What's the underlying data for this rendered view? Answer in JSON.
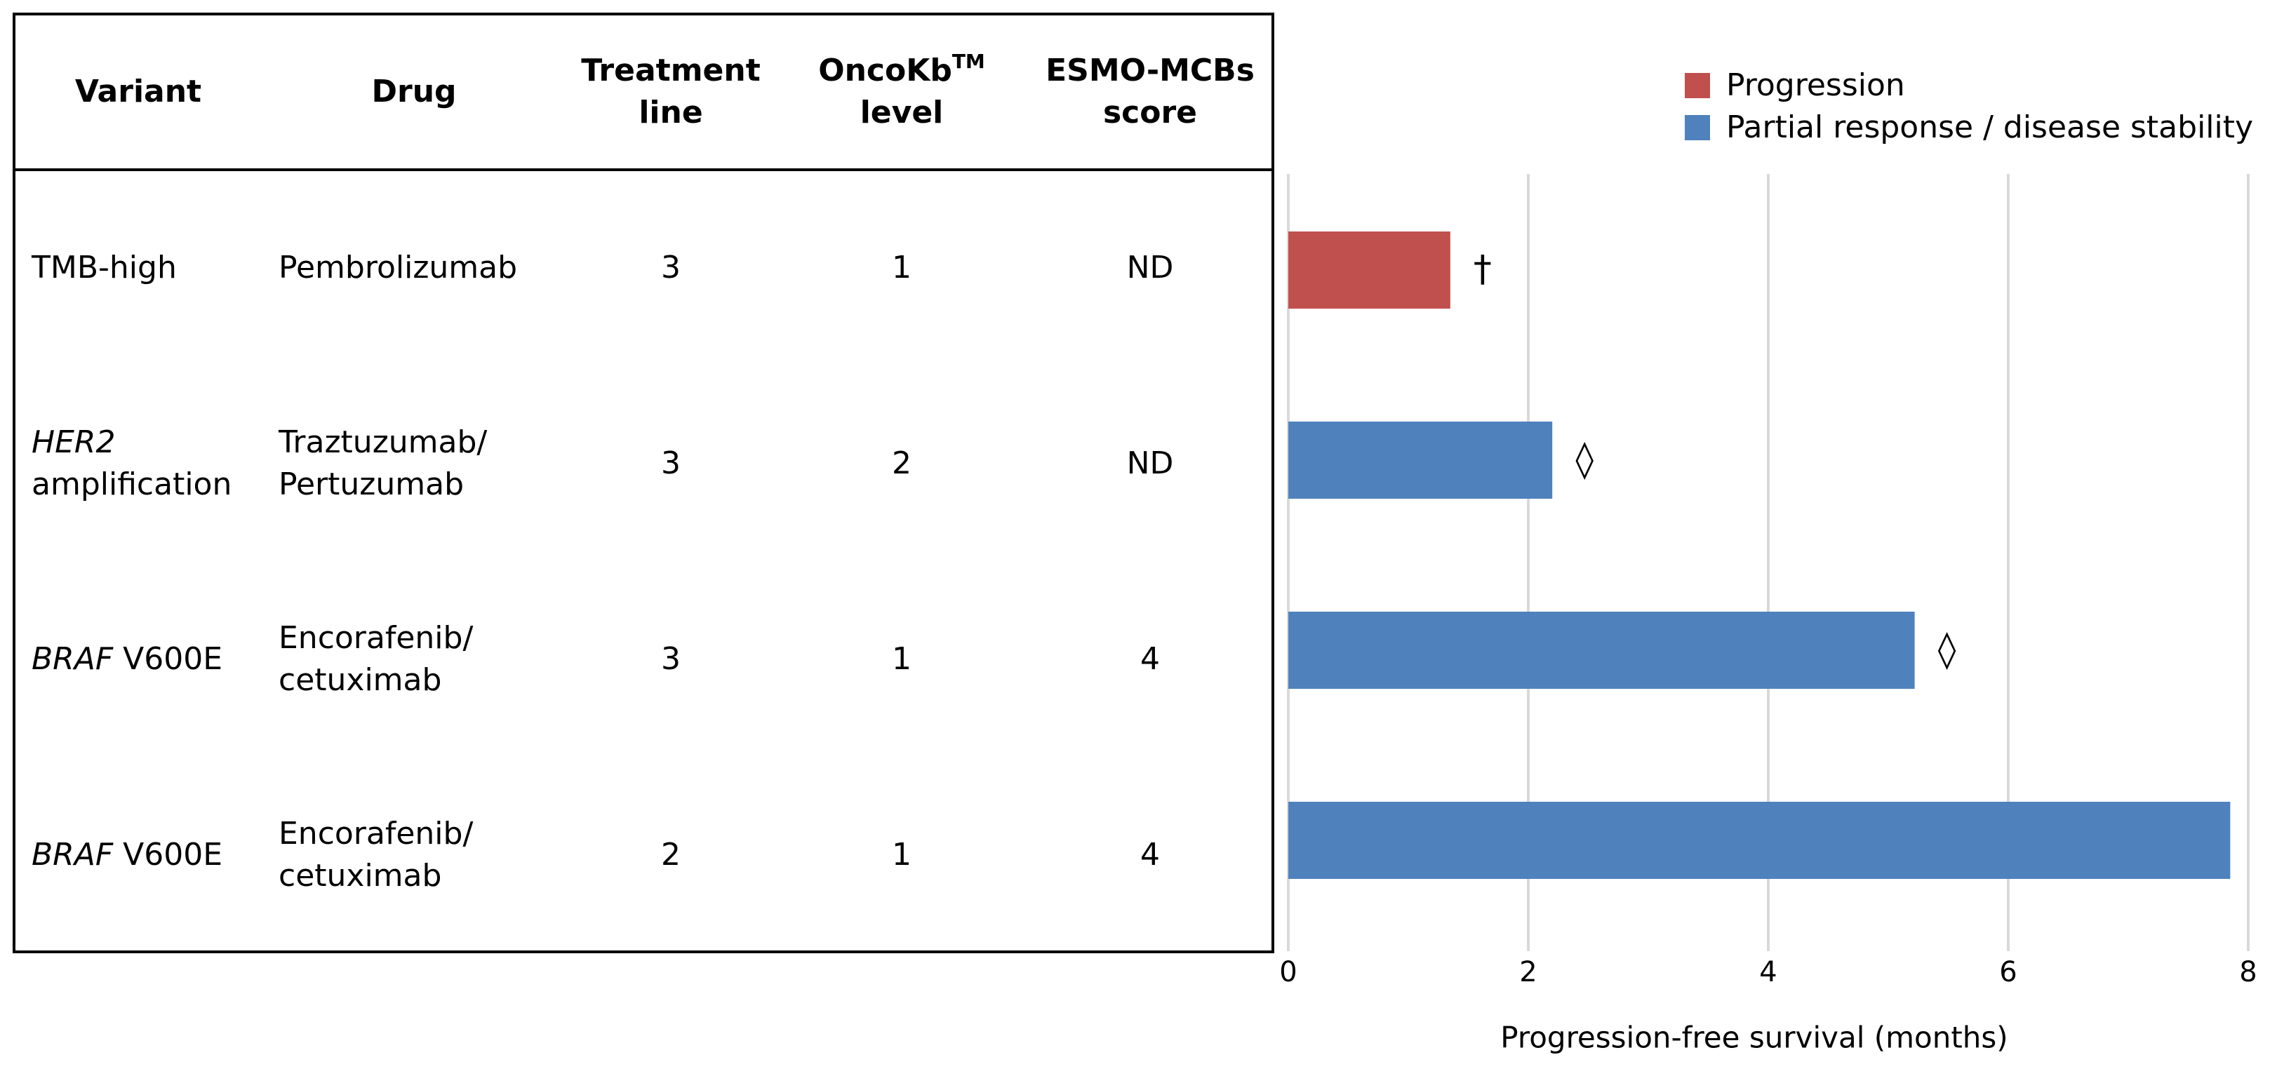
{
  "table": {
    "header": [
      "Variant",
      "Drug",
      "Treatment line",
      {
        "text": "OncoKb",
        "sup": "TM",
        "after": "level"
      },
      "ESMO-MCBs score"
    ],
    "rows": [
      [
        "TMB-high",
        "Pembrolizumab",
        3,
        1,
        "ND"
      ],
      [
        {
          "italic": "HER2",
          "text": "\namplification"
        },
        "Traztuzumab/\nPertuzumab",
        3,
        2,
        "ND"
      ],
      [
        {
          "italic": "BRAF",
          "text": " V600E"
        },
        "Encorafenib/\ncetuximab",
        3,
        1,
        4
      ],
      [
        {
          "italic": "BRAF",
          "text": " V600E"
        },
        "Encorafenib/\ncetuximab",
        2,
        1,
        4
      ]
    ]
  },
  "chart_data": {
    "type": "barh",
    "xlabel": "Progression-free survival (months)",
    "series": [
      {
        "name": "Progression",
        "color": "#c0504d",
        "values": [
          1.35,
          null,
          null,
          null
        ]
      },
      {
        "name": "Partial response / disease stability",
        "color": "#4f81bd",
        "values": [
          null,
          2.2,
          5.22,
          7.85
        ]
      }
    ],
    "markers": [
      "†",
      "◊",
      "◊",
      null
    ],
    "xlim": [
      0,
      8
    ],
    "xticks": [
      0,
      2,
      4,
      6,
      8
    ],
    "grid": true,
    "legend": "top-right"
  }
}
